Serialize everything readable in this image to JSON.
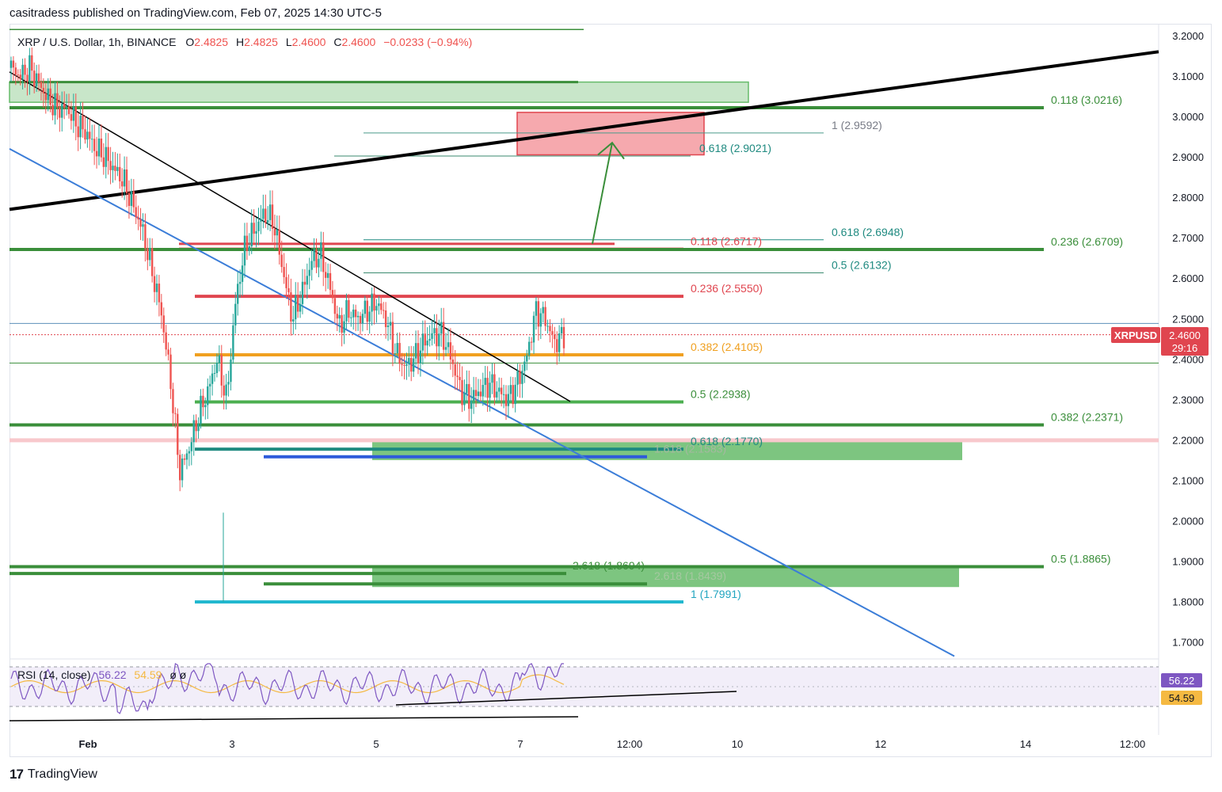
{
  "header": {
    "published": "casitradess published on TradingView.com, Feb 07, 2025 14:30 UTC-5"
  },
  "footer": {
    "brand": "TradingView",
    "logo_glyph": "17"
  },
  "legend": {
    "symbol": "XRP / U.S. Dollar, 1h, BINANCE",
    "o_label": "O",
    "o": "2.4825",
    "h_label": "H",
    "h": "2.4825",
    "l_label": "L",
    "l": "2.4600",
    "c_label": "C",
    "c": "2.4600",
    "change": "−0.0233 (−0.94%)"
  },
  "rsi_legend": {
    "label": "RSI (14, close)",
    "rsi": "56.22",
    "ma": "54.59",
    "extra": "ø ø"
  },
  "price_tag": {
    "symbol": "XRPUSD",
    "price": "2.4600",
    "countdown": "29:16"
  },
  "rsi_tags": {
    "rsi": "56.22",
    "ma": "54.59"
  },
  "colors": {
    "green_line": "#3a8e3a",
    "green_zone": "#66bb6a",
    "red_line": "#e0454f",
    "red_zone": "#f6a9ae",
    "orange": "#f0a020",
    "teal": "#1f8a80",
    "cyan": "#22b8cf",
    "blue": "#2e5bda",
    "up_candle": "#26a69a",
    "down_candle": "#ef5350",
    "rsi_line": "#7e57c2",
    "rsi_ma": "#f5b942",
    "trend_blue": "#3b7dd8"
  },
  "chart_data": {
    "type": "candlestick",
    "title": "XRP / U.S. Dollar, 1h, BINANCE",
    "ylim": [
      1.64,
      3.22
    ],
    "y_ticks": [
      "3.2000",
      "3.1000",
      "3.0000",
      "2.9000",
      "2.8000",
      "2.7000",
      "2.6000",
      "2.5000",
      "2.4000",
      "2.3000",
      "2.2000",
      "2.1000",
      "2.0000",
      "1.9000",
      "1.8000",
      "1.7000"
    ],
    "x_ticks": [
      "Feb",
      "3",
      "5",
      "7",
      "12:00",
      "10",
      "12",
      "14",
      "12:00"
    ],
    "price_path": [
      [
        0,
        3.12
      ],
      [
        3,
        3.1
      ],
      [
        6,
        3.12
      ],
      [
        8,
        3.08
      ],
      [
        10,
        3.04
      ],
      [
        12,
        3.02
      ],
      [
        15,
        3.02
      ],
      [
        18,
        2.98
      ],
      [
        21,
        2.96
      ],
      [
        24,
        2.92
      ],
      [
        27,
        2.9
      ],
      [
        30,
        2.87
      ],
      [
        32,
        2.84
      ],
      [
        34,
        2.78
      ],
      [
        36,
        2.72
      ],
      [
        38,
        2.62
      ],
      [
        40,
        2.52
      ],
      [
        42,
        2.35
      ],
      [
        43,
        2.12
      ],
      [
        44,
        2.18
      ],
      [
        45,
        2.26
      ],
      [
        46,
        2.32
      ],
      [
        48,
        2.4
      ],
      [
        50,
        2.3
      ],
      [
        52,
        2.55
      ],
      [
        54,
        2.68
      ],
      [
        56,
        2.72
      ],
      [
        58,
        2.76
      ],
      [
        60,
        2.74
      ],
      [
        62,
        2.62
      ],
      [
        64,
        2.5
      ],
      [
        66,
        2.56
      ],
      [
        68,
        2.64
      ],
      [
        70,
        2.66
      ],
      [
        72,
        2.58
      ],
      [
        74,
        2.48
      ],
      [
        76,
        2.52
      ],
      [
        78,
        2.5
      ],
      [
        80,
        2.52
      ],
      [
        82,
        2.54
      ],
      [
        84,
        2.5
      ],
      [
        86,
        2.42
      ],
      [
        88,
        2.38
      ],
      [
        90,
        2.4
      ],
      [
        92,
        2.44
      ],
      [
        94,
        2.46
      ],
      [
        96,
        2.46
      ],
      [
        98,
        2.4
      ],
      [
        100,
        2.32
      ],
      [
        102,
        2.3
      ],
      [
        104,
        2.32
      ],
      [
        106,
        2.34
      ],
      [
        108,
        2.32
      ],
      [
        110,
        2.3
      ],
      [
        112,
        2.34
      ],
      [
        114,
        2.4
      ],
      [
        116,
        2.52
      ],
      [
        117,
        2.5
      ],
      [
        118,
        2.44
      ],
      [
        119,
        2.46
      ]
    ],
    "levels": [
      {
        "label": "0.118 (3.0216)",
        "price": 3.0216,
        "group": "green"
      },
      {
        "label": "1 (2.9592)",
        "price": 2.9592,
        "group": "gray"
      },
      {
        "label": "0.618 (2.9021)",
        "price": 2.9021,
        "group": "teal"
      },
      {
        "label": "0.618 (2.6948)",
        "price": 2.6948,
        "group": "teal"
      },
      {
        "label": "0.118 (2.6717)",
        "price": 2.6717,
        "group": "red"
      },
      {
        "label": "0.236 (2.6709)",
        "price": 2.6709,
        "group": "green"
      },
      {
        "label": "0.5 (2.6132)",
        "price": 2.6132,
        "group": "teal"
      },
      {
        "label": "0.236 (2.5550)",
        "price": 2.555,
        "group": "red"
      },
      {
        "label": "0.382 (2.4105)",
        "price": 2.4105,
        "group": "orange"
      },
      {
        "label": "0.5 (2.2938)",
        "price": 2.2938,
        "group": "green"
      },
      {
        "label": "0.382 (2.2371)",
        "price": 2.2371,
        "group": "green"
      },
      {
        "label": "1.618 (2.1583)",
        "price": 2.1583,
        "group": "faint"
      },
      {
        "label": "0.618 (2.1770)",
        "price": 2.177,
        "group": "teal"
      },
      {
        "label": "0.5 (1.8865)",
        "price": 1.8865,
        "group": "green"
      },
      {
        "label": "2.618 (1.8694)",
        "price": 1.8694,
        "group": "green"
      },
      {
        "label": "2.618 (1.8439)",
        "price": 1.8439,
        "group": "faint"
      },
      {
        "label": "1 (1.7991)",
        "price": 1.7991,
        "group": "cyan"
      }
    ]
  }
}
